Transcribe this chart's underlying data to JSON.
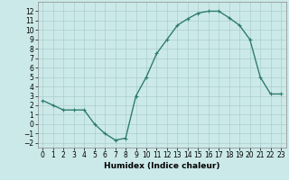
{
  "x": [
    0,
    1,
    2,
    3,
    4,
    5,
    6,
    7,
    8,
    9,
    10,
    11,
    12,
    13,
    14,
    15,
    16,
    17,
    18,
    19,
    20,
    21,
    22,
    23
  ],
  "y": [
    2.5,
    2.0,
    1.5,
    1.5,
    1.5,
    0.0,
    -1.0,
    -1.7,
    -1.5,
    3.0,
    5.0,
    7.5,
    9.0,
    10.5,
    11.2,
    11.8,
    12.0,
    12.0,
    11.3,
    10.5,
    9.0,
    5.0,
    3.2,
    3.2
  ],
  "line_color": "#2e7d6e",
  "marker": "+",
  "marker_size": 3,
  "background_color": "#cce9e9",
  "grid_color": "#aacece",
  "xlabel": "Humidex (Indice chaleur)",
  "xlim": [
    -0.5,
    23.5
  ],
  "ylim": [
    -2.5,
    13.0
  ],
  "xticks": [
    0,
    1,
    2,
    3,
    4,
    5,
    6,
    7,
    8,
    9,
    10,
    11,
    12,
    13,
    14,
    15,
    16,
    17,
    18,
    19,
    20,
    21,
    22,
    23
  ],
  "yticks": [
    -2,
    -1,
    0,
    1,
    2,
    3,
    4,
    5,
    6,
    7,
    8,
    9,
    10,
    11,
    12
  ],
  "tick_fontsize": 5.5,
  "xlabel_fontsize": 6.5,
  "line_width": 1.0
}
